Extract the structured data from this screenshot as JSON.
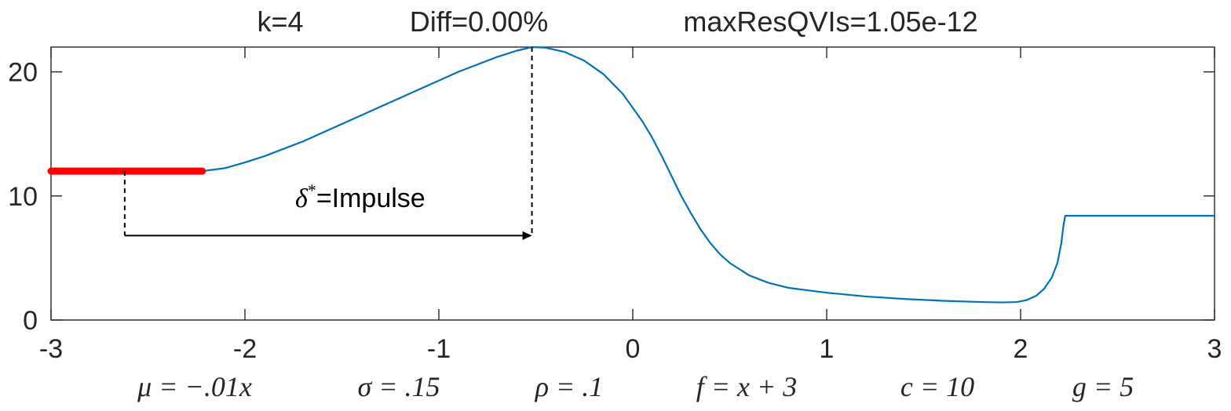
{
  "chart_data": {
    "type": "line",
    "title": {
      "k": "k=4",
      "diff": "Diff=0.00%",
      "maxres": "maxResQVIs=1.05e-12"
    },
    "xlabel_params": [
      "μ = −.01x",
      "σ = .15",
      "ρ = .1",
      "f = x + 3",
      "c = 10",
      "g = 5"
    ],
    "xlim": [
      -3,
      3
    ],
    "ylim": [
      0,
      22
    ],
    "x_ticks": [
      {
        "value": -3,
        "label": "-3"
      },
      {
        "value": -2,
        "label": "-2"
      },
      {
        "value": -1,
        "label": "-1"
      },
      {
        "value": 0,
        "label": "0"
      },
      {
        "value": 1,
        "label": "1"
      },
      {
        "value": 2,
        "label": "2"
      },
      {
        "value": 3,
        "label": "3"
      }
    ],
    "y_ticks": [
      {
        "value": 0,
        "label": "0"
      },
      {
        "value": 10,
        "label": "10"
      },
      {
        "value": 20,
        "label": "20"
      }
    ],
    "grid": false,
    "series": [
      {
        "color": "#0072BD",
        "points": [
          [
            -3.0,
            12.0
          ],
          [
            -2.22,
            12.0
          ],
          [
            -2.1,
            12.25
          ],
          [
            -2.0,
            12.7
          ],
          [
            -1.9,
            13.2
          ],
          [
            -1.8,
            13.8
          ],
          [
            -1.7,
            14.4
          ],
          [
            -1.6,
            15.1
          ],
          [
            -1.5,
            15.8
          ],
          [
            -1.4,
            16.5
          ],
          [
            -1.3,
            17.2
          ],
          [
            -1.2,
            17.9
          ],
          [
            -1.1,
            18.6
          ],
          [
            -1.0,
            19.3
          ],
          [
            -0.9,
            20.0
          ],
          [
            -0.8,
            20.6
          ],
          [
            -0.7,
            21.2
          ],
          [
            -0.6,
            21.7
          ],
          [
            -0.52,
            22.0
          ],
          [
            -0.45,
            21.95
          ],
          [
            -0.35,
            21.6
          ],
          [
            -0.25,
            20.9
          ],
          [
            -0.15,
            19.8
          ],
          [
            -0.05,
            18.2
          ],
          [
            0.05,
            16.0
          ],
          [
            0.1,
            14.7
          ],
          [
            0.15,
            13.2
          ],
          [
            0.2,
            11.6
          ],
          [
            0.25,
            10.0
          ],
          [
            0.3,
            8.6
          ],
          [
            0.35,
            7.3
          ],
          [
            0.4,
            6.2
          ],
          [
            0.45,
            5.3
          ],
          [
            0.5,
            4.6
          ],
          [
            0.6,
            3.6
          ],
          [
            0.7,
            3.0
          ],
          [
            0.8,
            2.6
          ],
          [
            0.9,
            2.4
          ],
          [
            1.0,
            2.2
          ],
          [
            1.2,
            1.9
          ],
          [
            1.4,
            1.7
          ],
          [
            1.6,
            1.55
          ],
          [
            1.8,
            1.45
          ],
          [
            1.9,
            1.42
          ],
          [
            1.98,
            1.45
          ],
          [
            2.03,
            1.6
          ],
          [
            2.08,
            1.95
          ],
          [
            2.12,
            2.5
          ],
          [
            2.16,
            3.4
          ],
          [
            2.19,
            4.6
          ],
          [
            2.21,
            6.2
          ],
          [
            2.22,
            7.5
          ],
          [
            2.23,
            8.4
          ],
          [
            3.0,
            8.4
          ]
        ]
      },
      {
        "color": "#FF0000",
        "points": [
          [
            -3.0,
            12.0
          ],
          [
            -2.22,
            12.0
          ]
        ]
      }
    ],
    "annotations": {
      "label": "=Impulse",
      "label_symbol": "δ",
      "label_sup": "*",
      "from": {
        "x": -2.62,
        "y": 12.0
      },
      "to": {
        "x": -0.52,
        "y": 22.0
      },
      "arrow_y": 6.8
    }
  }
}
